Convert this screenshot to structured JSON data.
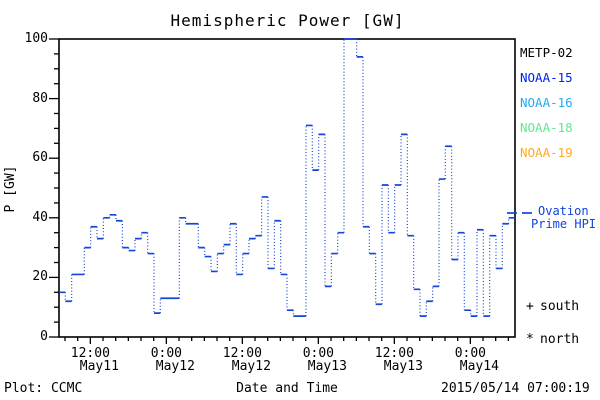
{
  "chart_data": {
    "type": "line",
    "subtype": "step-histogram",
    "title": "Hemispheric Power [GW]",
    "xlabel": "Date and Time",
    "ylabel": "P [GW]",
    "ylim": [
      0,
      100
    ],
    "y_major_ticks": [
      0,
      20,
      40,
      60,
      80,
      100
    ],
    "y_minor_step": 5,
    "x_major_ticks": [
      {
        "time": "12:00",
        "date": "May11"
      },
      {
        "time": "0:00",
        "date": "May12"
      },
      {
        "time": "12:00",
        "date": "May12"
      },
      {
        "time": "0:00",
        "date": "May13"
      },
      {
        "time": "12:00",
        "date": "May13"
      },
      {
        "time": "0:00",
        "date": "May14"
      }
    ],
    "x_minor_step_hours": 2,
    "x_range_hours": 72,
    "first_major_tick_offset_hours": 4.95,
    "grid": false,
    "series": [
      {
        "name": "Ovation Prime HPI",
        "color": "#1546d8",
        "style": "solid horizontal steps with dotted vertical connectors",
        "start": "May11 07:00",
        "step_hours": 1,
        "values": [
          15,
          12,
          21,
          21,
          30,
          37,
          33,
          40,
          41,
          39,
          30,
          29,
          33,
          35,
          28,
          8,
          13,
          13,
          13,
          40,
          38,
          38,
          30,
          27,
          22,
          28,
          31,
          38,
          21,
          28,
          33,
          34,
          47,
          23,
          39,
          21,
          9,
          7,
          7,
          71,
          56,
          68,
          17,
          28,
          35,
          100,
          100,
          94,
          37,
          28,
          11,
          51,
          35,
          51,
          68,
          34,
          16,
          7,
          12,
          17,
          53,
          64,
          26,
          35,
          9,
          7,
          36,
          7,
          34,
          23,
          38,
          40
        ]
      }
    ],
    "legend": {
      "position": "right",
      "satellites": [
        {
          "label": "METP-02",
          "color": "#000000"
        },
        {
          "label": "NOAA-15",
          "color": "#0022f0"
        },
        {
          "label": "NOAA-16",
          "color": "#22aaee"
        },
        {
          "label": "NOAA-18",
          "color": "#60e890"
        },
        {
          "label": "NOAA-19",
          "color": "#ffaa22"
        }
      ],
      "line_sample": {
        "line1": "Ovation",
        "line2": "Prime HPI",
        "color": "#1244dd"
      },
      "markers": [
        {
          "symbol": "+",
          "label": "south"
        },
        {
          "symbol": "*",
          "label": "north"
        }
      ]
    },
    "footer": {
      "left": "Plot: CCMC",
      "right": "2015/05/14 07:00:19"
    }
  }
}
